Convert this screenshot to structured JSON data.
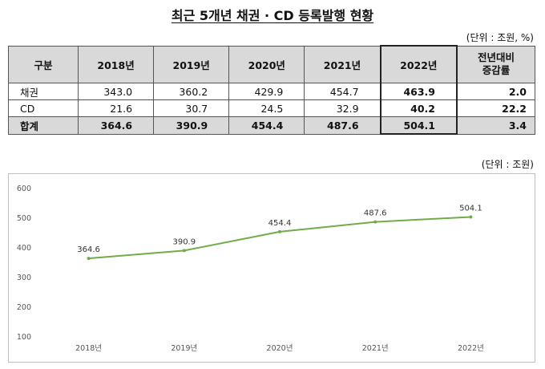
{
  "title": "최근 5개년 채권 · CD 등록발행 현황",
  "table": {
    "unit": "(단위 : 조원, %)",
    "header": [
      "구분",
      "2018년",
      "2019년",
      "2020년",
      "2021년",
      "2022년"
    ],
    "header_change_line1": "전년대비",
    "header_change_line2": "증감률",
    "rows": [
      {
        "label": "채권",
        "values": [
          "343.0",
          "360.2",
          "429.9",
          "454.7",
          "463.9"
        ],
        "change": "2.0"
      },
      {
        "label": "CD",
        "values": [
          "21.6",
          "30.7",
          "24.5",
          "32.9",
          "40.2"
        ],
        "change": "22.2"
      },
      {
        "label": "합계",
        "values": [
          "364.6",
          "390.9",
          "454.4",
          "487.6",
          "504.1"
        ],
        "change": "3.4"
      }
    ]
  },
  "chart_unit": "(단위 : 조원)",
  "chart_data": {
    "type": "line",
    "categories": [
      "2018년",
      "2019년",
      "2020년",
      "2021년",
      "2022년"
    ],
    "series": [
      {
        "values": [
          364.6,
          390.9,
          454.4,
          487.6,
          504.1
        ]
      }
    ],
    "data_labels": [
      "364.6",
      "390.9",
      "454.4",
      "487.6",
      "504.1"
    ],
    "ylim": [
      100,
      600
    ],
    "yticks": [
      "100",
      "200",
      "300",
      "400",
      "500",
      "600"
    ],
    "grid": false,
    "line_color": "#70ad47"
  }
}
